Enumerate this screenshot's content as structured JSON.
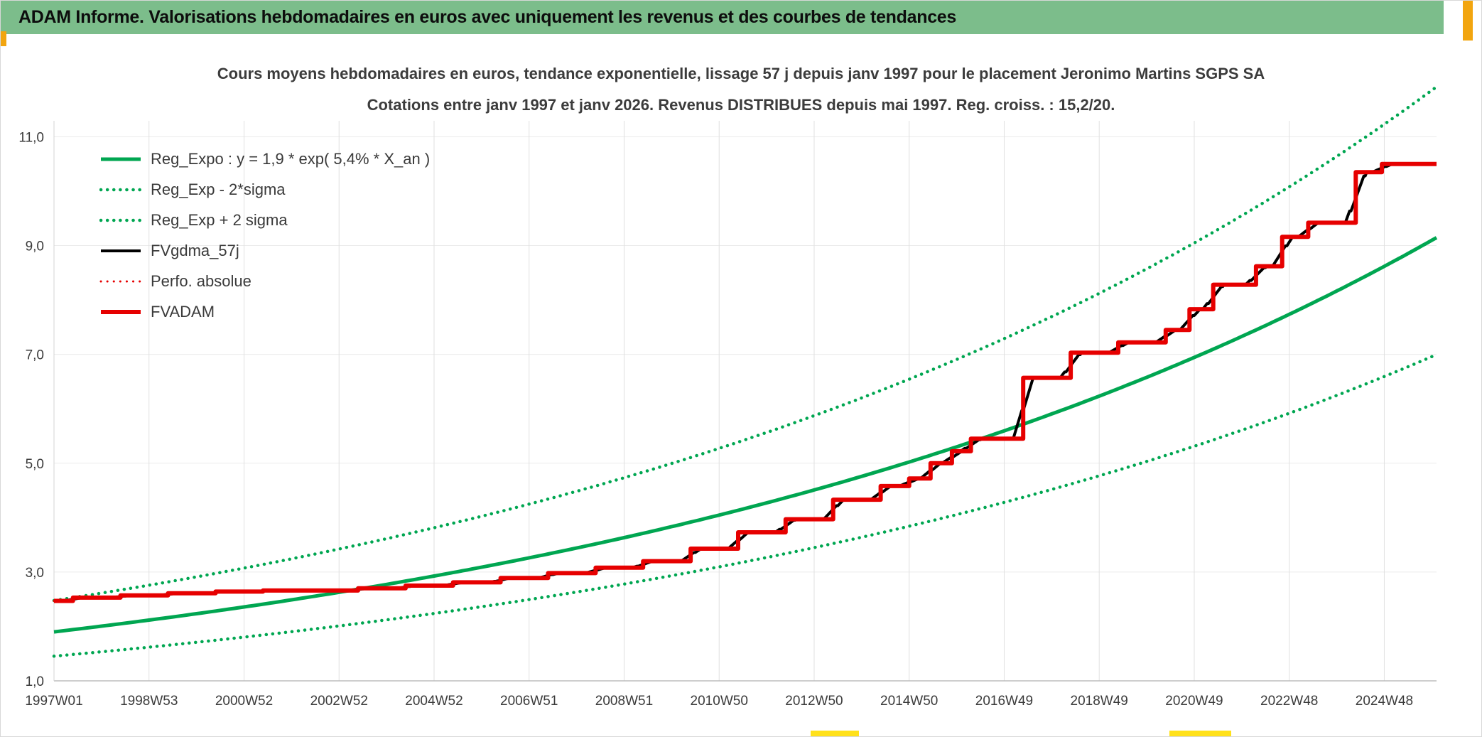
{
  "banner": {
    "title": "ADAM Informe. Valorisations hebdomadaires en euros avec uniquement les revenus et des courbes de tendances",
    "background": "#7CBD8B"
  },
  "artifacts": {
    "side_handle_color": "#F2A50F",
    "bottom_handle_color": "#FFE11A"
  },
  "chart_data": {
    "type": "line",
    "title": "Cours moyens hebdomadaires en euros, tendance exponentielle, lissage 57 j depuis janv 1997 pour le placement Jeronimo Martins SGPS SA",
    "subtitle": "Cotations entre janv 1997 et janv 2026. Revenus DISTRIBUES depuis mai 1997. Reg. croiss. : 15,2/20.",
    "legend_position": "top-left",
    "grid": true,
    "x_axis": {
      "label": "",
      "tick_labels": [
        "1997W01",
        "1998W53",
        "2000W52",
        "2002W52",
        "2004W52",
        "2006W51",
        "2008W51",
        "2010W50",
        "2012W50",
        "2014W50",
        "2016W49",
        "2018W49",
        "2020W49",
        "2022W48",
        "2024W48"
      ],
      "tick_years": [
        1997,
        1999,
        2001,
        2003,
        2005,
        2007,
        2009,
        2011,
        2013,
        2015,
        2017,
        2019,
        2021,
        2023,
        2025
      ],
      "range_years": [
        1997,
        2026.1
      ]
    },
    "y_axis": {
      "label": "",
      "tick_labels": [
        "1,0",
        "3,0",
        "5,0",
        "7,0",
        "9,0",
        "11,0"
      ],
      "tick_values": [
        1,
        3,
        5,
        7,
        9,
        11
      ],
      "range": [
        1.0,
        12.05
      ]
    },
    "series": [
      {
        "name": "Reg_Expo : y = 1,9 * exp( 5,4% *  X_an )",
        "slug": "reg-expo",
        "kind": "exponential",
        "base": 1.9,
        "rate": 0.054,
        "factor": 1.0,
        "color": "#00A651",
        "dash": "solid",
        "width": 5
      },
      {
        "name": "Reg_Exp - 2*sigma",
        "slug": "reg-exp-minus-2sigma",
        "kind": "exponential",
        "base": 1.9,
        "rate": 0.054,
        "factor": 0.765,
        "color": "#00A651",
        "dash": "dotted",
        "width": 4.5
      },
      {
        "name": "Reg_Exp + 2 sigma",
        "slug": "reg-exp-plus-2sigma",
        "kind": "exponential",
        "base": 1.9,
        "rate": 0.054,
        "factor": 1.303,
        "color": "#00A651",
        "dash": "dotted",
        "width": 4.5
      },
      {
        "name": "FVgdma_57j",
        "slug": "fvgdma-57j",
        "kind": "smoothed_steps",
        "smooth_window_years": 0.4,
        "color": "#000000",
        "dash": "solid",
        "width": 4
      },
      {
        "name": "Perfo. absolue",
        "slug": "perfo-absolue",
        "kind": "steps",
        "color": "#E60000",
        "dash": "dotted",
        "width": 3
      },
      {
        "name": "FVADAM",
        "slug": "fvadam",
        "kind": "steps",
        "color": "#E60000",
        "dash": "solid",
        "width": 6
      }
    ],
    "fvadam_steps": [
      [
        1997.0,
        2.47
      ],
      [
        1997.4,
        2.53
      ],
      [
        1998.4,
        2.57
      ],
      [
        1999.4,
        2.61
      ],
      [
        2000.4,
        2.64
      ],
      [
        2001.4,
        2.66
      ],
      [
        2003.4,
        2.7
      ],
      [
        2004.4,
        2.75
      ],
      [
        2005.4,
        2.81
      ],
      [
        2006.4,
        2.89
      ],
      [
        2007.4,
        2.98
      ],
      [
        2008.4,
        3.08
      ],
      [
        2009.4,
        3.2
      ],
      [
        2010.4,
        3.43
      ],
      [
        2011.4,
        3.73
      ],
      [
        2012.4,
        3.97
      ],
      [
        2013.4,
        4.33
      ],
      [
        2014.4,
        4.58
      ],
      [
        2015.0,
        4.72
      ],
      [
        2015.45,
        5.0
      ],
      [
        2015.9,
        5.22
      ],
      [
        2016.3,
        5.45
      ],
      [
        2017.4,
        6.57
      ],
      [
        2018.4,
        7.03
      ],
      [
        2019.4,
        7.22
      ],
      [
        2020.4,
        7.45
      ],
      [
        2020.9,
        7.83
      ],
      [
        2021.4,
        8.28
      ],
      [
        2022.3,
        8.62
      ],
      [
        2022.85,
        9.16
      ],
      [
        2023.4,
        9.42
      ],
      [
        2024.4,
        10.35
      ],
      [
        2024.95,
        10.5
      ]
    ]
  }
}
